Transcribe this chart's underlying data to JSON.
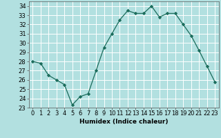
{
  "x": [
    0,
    1,
    2,
    3,
    4,
    5,
    6,
    7,
    8,
    9,
    10,
    11,
    12,
    13,
    14,
    15,
    16,
    17,
    18,
    19,
    20,
    21,
    22,
    23
  ],
  "y": [
    28,
    27.8,
    26.5,
    26,
    25.5,
    23.3,
    24.2,
    24.5,
    27,
    29.5,
    31,
    32.5,
    33.5,
    33.2,
    33.2,
    34,
    32.8,
    33.2,
    33.2,
    32,
    30.8,
    29.2,
    27.5,
    25.8
  ],
  "line_color": "#1a6b5a",
  "marker": "D",
  "marker_size": 2.2,
  "bg_color": "#b2e0e0",
  "grid_color": "#ffffff",
  "xlabel": "Humidex (Indice chaleur)",
  "ylim": [
    23,
    34.5
  ],
  "xlim": [
    -0.5,
    23.5
  ],
  "yticks": [
    23,
    24,
    25,
    26,
    27,
    28,
    29,
    30,
    31,
    32,
    33,
    34
  ],
  "xticks": [
    0,
    1,
    2,
    3,
    4,
    5,
    6,
    7,
    8,
    9,
    10,
    11,
    12,
    13,
    14,
    15,
    16,
    17,
    18,
    19,
    20,
    21,
    22,
    23
  ],
  "label_fontsize": 6.5,
  "tick_fontsize": 6.0
}
